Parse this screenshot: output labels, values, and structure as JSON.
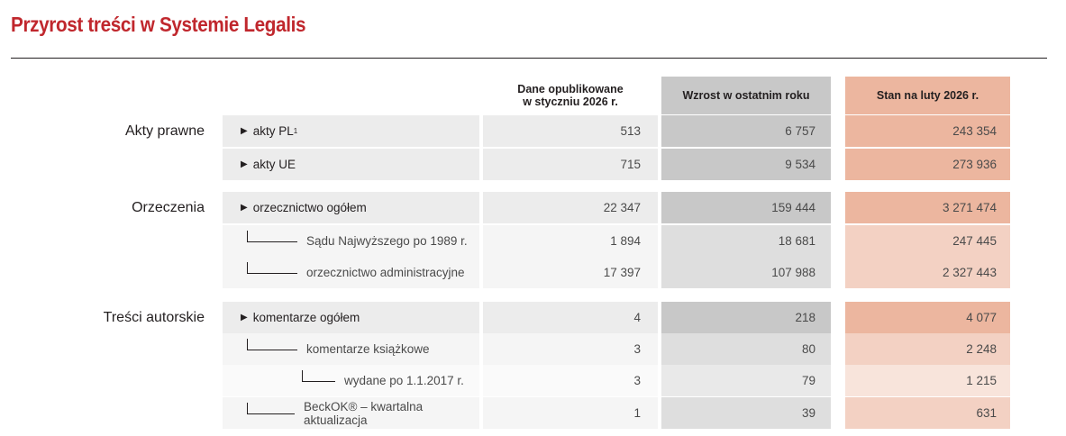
{
  "title": "Przyrost treści w Systemie Legalis",
  "columns": {
    "published": "Dane opublikowane w styczniu 2026 r.",
    "growth": "Wzrost w ostatnim roku",
    "state": "Stan na luty 2026 r."
  },
  "groups": {
    "akty": "Akty prawne",
    "orzeczenia": "Orzeczenia",
    "tresci": "Treści autorskie"
  },
  "colors": {
    "title": "#c0272d",
    "growth_header": "#c8c8c8",
    "state_header": "#ecb69f"
  },
  "rows": [
    {
      "label": "akty PL",
      "sup": "1",
      "published": "513",
      "growth": "6 757",
      "state": "243 354"
    },
    {
      "label": "akty UE",
      "published": "715",
      "growth": "9 534",
      "state": "273 936"
    },
    {
      "label": "orzecznictwo ogółem",
      "published": "22 347",
      "growth": "159 444",
      "state": "3 271 474"
    },
    {
      "label": "Sądu Najwyższego po 1989 r.",
      "published": "1 894",
      "growth": "18 681",
      "state": "247 445"
    },
    {
      "label": "orzecznictwo administracyjne",
      "published": "17 397",
      "growth": "107 988",
      "state": "2 327 443"
    },
    {
      "label": "komentarze ogółem",
      "published": "4",
      "growth": "218",
      "state": "4 077"
    },
    {
      "label": "komentarze książkowe",
      "published": "3",
      "growth": "80",
      "state": "2 248"
    },
    {
      "label": "wydane po 1.1.2017 r.",
      "published": "3",
      "growth": "79",
      "state": "1 215"
    },
    {
      "label": "BeckOK® – kwartalna aktualizacja",
      "published": "1",
      "growth": "39",
      "state": "631"
    }
  ]
}
